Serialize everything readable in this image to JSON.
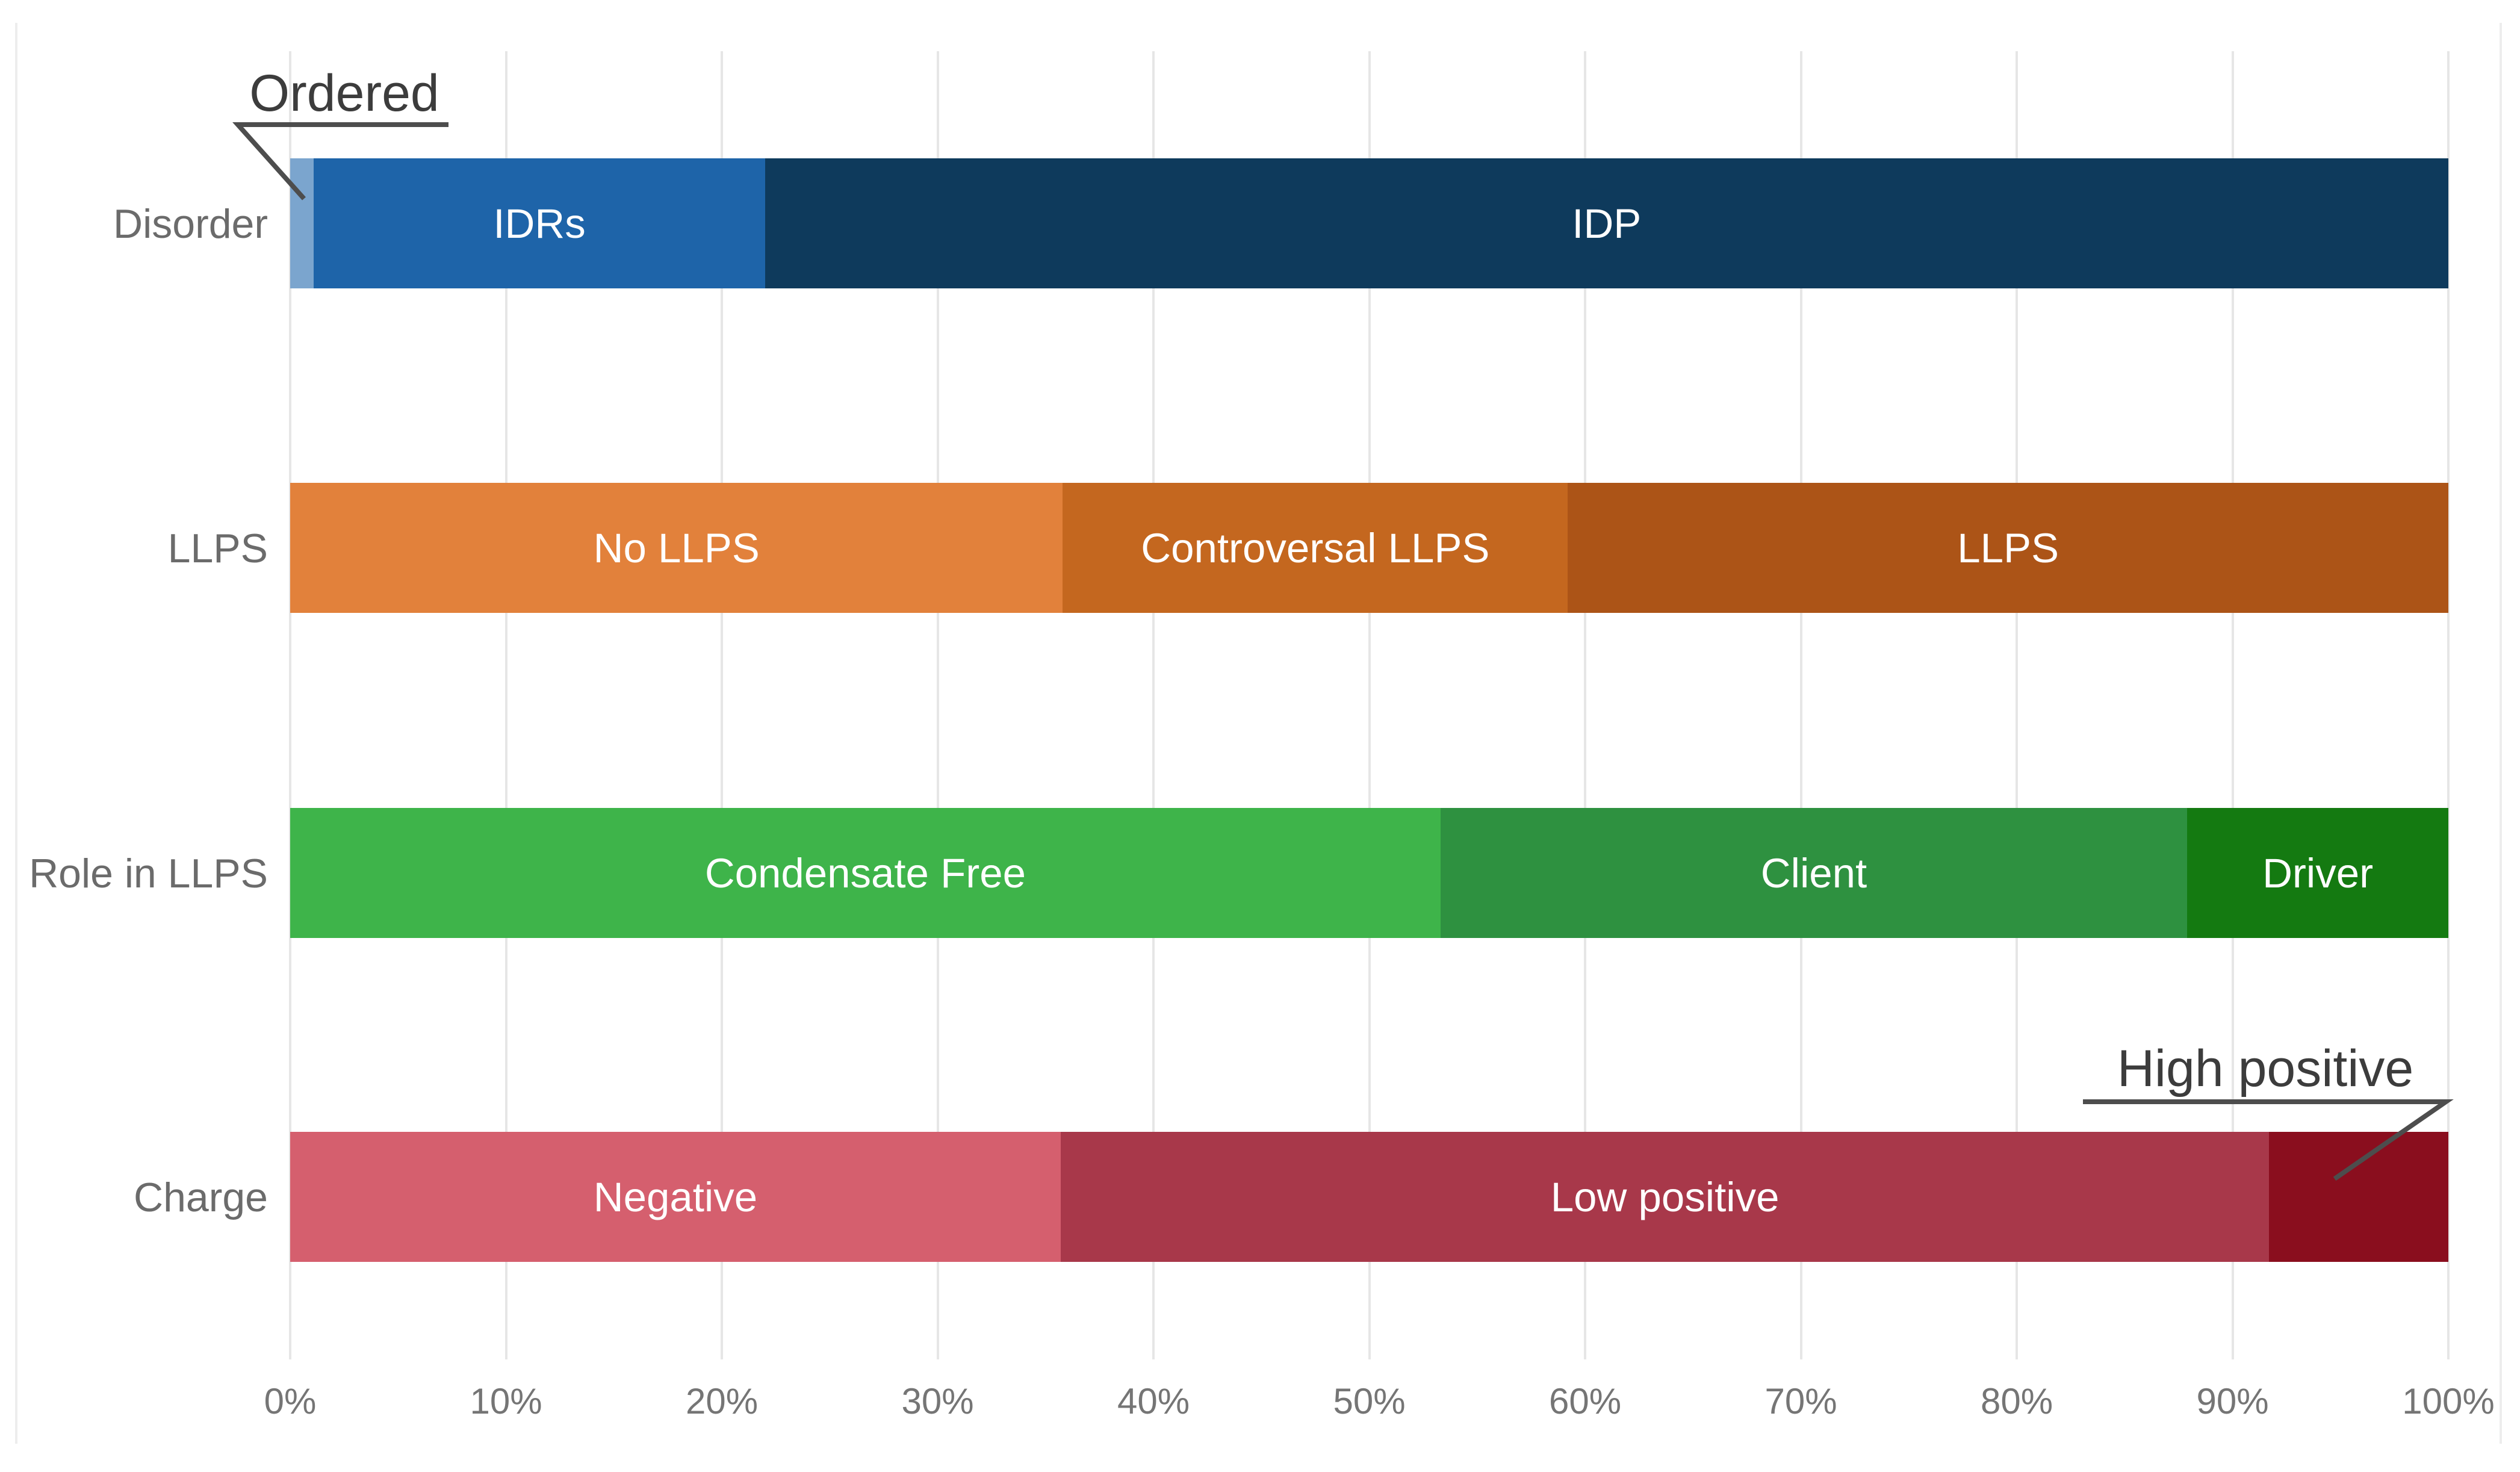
{
  "chart_data": {
    "type": "bar",
    "orientation": "horizontal-stacked",
    "title": "",
    "xlabel": "",
    "ylabel": "",
    "unit": "percent",
    "xlim": [
      0,
      100
    ],
    "grid": "vertical",
    "x_ticks": [
      "0%",
      "10%",
      "20%",
      "30%",
      "40%",
      "50%",
      "60%",
      "70%",
      "80%",
      "90%",
      "100%"
    ],
    "categories": [
      {
        "label": "Disorder",
        "segments": [
          {
            "name": "Ordered",
            "value": 1.1,
            "color": "#7BA5CE",
            "label_in_bar": false
          },
          {
            "name": "IDRs",
            "value": 20.9,
            "color": "#1E64A9",
            "label_in_bar": true
          },
          {
            "name": "IDP",
            "value": 78.0,
            "color": "#0E3A5C",
            "label_in_bar": true
          }
        ]
      },
      {
        "label": "LLPS",
        "segments": [
          {
            "name": "No LLPS",
            "value": 35.8,
            "color": "#E2813B",
            "label_in_bar": true
          },
          {
            "name": "Controversal LLPS",
            "value": 23.4,
            "color": "#C4671F",
            "label_in_bar": true
          },
          {
            "name": "LLPS",
            "value": 40.8,
            "color": "#AC5417",
            "label_in_bar": true
          }
        ]
      },
      {
        "label": "Role in LLPS",
        "segments": [
          {
            "name": "Condensate Free",
            "value": 53.3,
            "color": "#3EB44A",
            "label_in_bar": true
          },
          {
            "name": "Client",
            "value": 34.6,
            "color": "#2E9140",
            "label_in_bar": true
          },
          {
            "name": "Driver",
            "value": 12.1,
            "color": "#147A11",
            "label_in_bar": true
          }
        ]
      },
      {
        "label": "Charge",
        "segments": [
          {
            "name": "Negative",
            "value": 35.7,
            "color": "#D55F6E",
            "label_in_bar": true
          },
          {
            "name": "Low positive",
            "value": 56.0,
            "color": "#A8384A",
            "label_in_bar": true
          },
          {
            "name": "High positive",
            "value": 8.3,
            "color": "#8A0E1E",
            "label_in_bar": false
          }
        ]
      }
    ],
    "annotations": [
      {
        "text": "Ordered",
        "target_category": "Disorder",
        "target_segment": "Ordered"
      },
      {
        "text": "High positive",
        "target_category": "Charge",
        "target_segment": "High positive"
      }
    ]
  },
  "style_colors": {
    "gridline": "#E6E6E6",
    "card_border": "#EDEDED",
    "tick_text": "#757575",
    "row_label_text": "#6B6B6B",
    "segment_text": "#FFFFFF",
    "annotation_text": "#3C3C3C",
    "annotation_line": "#4D4D4D"
  }
}
